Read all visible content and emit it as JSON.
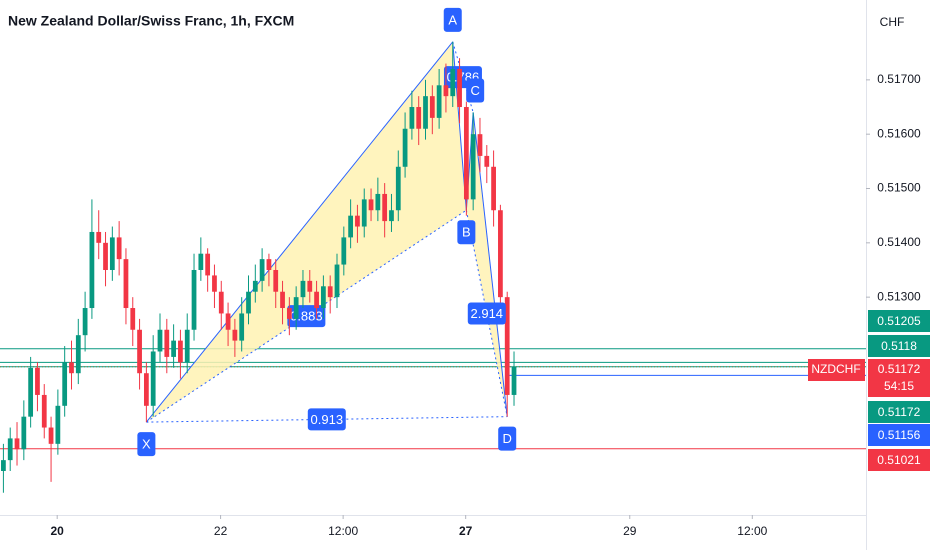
{
  "chart_data": {
    "type": "candlestick",
    "title": "New Zealand Dollar/Swiss Franc, 1h, FXCM",
    "currency": "CHF",
    "up_color": "#089981",
    "down_color": "#f23645",
    "xlim": [
      -0.5,
      126.7
    ],
    "ylim": [
      0.50899,
      0.51847
    ],
    "xticks": [
      {
        "value": 7.9,
        "label": "20"
      },
      {
        "value": 31.9,
        "label": "22"
      },
      {
        "value": 49.9,
        "label": "12:00"
      },
      {
        "value": 67.9,
        "label": "27"
      },
      {
        "value": 92,
        "label": "29"
      },
      {
        "value": 110,
        "label": "12:00"
      }
    ],
    "yticks": [
      {
        "value": 0.517,
        "label": "0.51700"
      },
      {
        "value": 0.516,
        "label": "0.51600"
      },
      {
        "value": 0.515,
        "label": "0.51500"
      },
      {
        "value": 0.514,
        "label": "0.51400"
      },
      {
        "value": 0.513,
        "label": "0.51300"
      }
    ],
    "open": [
      0.5098,
      0.51,
      0.5104,
      0.5102,
      0.5108,
      0.5117,
      0.5112,
      0.5106,
      0.5103,
      0.511,
      0.5118,
      0.5116,
      0.5123,
      0.5128,
      0.5142,
      0.514,
      0.5135,
      0.5141,
      0.5137,
      0.5128,
      0.5124,
      0.5116,
      0.511,
      0.512,
      0.5124,
      0.5119,
      0.5122,
      0.5118,
      0.5124,
      0.5135,
      0.5138,
      0.5134,
      0.5131,
      0.5127,
      0.5124,
      0.5122,
      0.5127,
      0.5131,
      0.5133,
      0.5137,
      0.5135,
      0.5131,
      0.5128,
      0.5126,
      0.513,
      0.5133,
      0.5131,
      0.5128,
      0.5132,
      0.513,
      0.5136,
      0.5141,
      0.5145,
      0.5143,
      0.5148,
      0.5146,
      0.5149,
      0.5144,
      0.5146,
      0.5154,
      0.5161,
      0.5165,
      0.5161,
      0.5167,
      0.5163,
      0.5169,
      0.5167,
      0.5172,
      0.5165,
      0.5148,
      0.516,
      0.5156,
      0.5154,
      0.5146,
      0.513,
      0.5112
    ],
    "high": [
      0.5103,
      0.5106,
      0.5107,
      0.5111,
      0.5119,
      0.5118,
      0.5114,
      0.5108,
      0.5113,
      0.5121,
      0.5122,
      0.5126,
      0.5131,
      0.5148,
      0.5146,
      0.5142,
      0.5143,
      0.5144,
      0.5139,
      0.513,
      0.5126,
      0.5118,
      0.5123,
      0.5127,
      0.5126,
      0.5125,
      0.5124,
      0.5127,
      0.5138,
      0.5141,
      0.5139,
      0.5136,
      0.5133,
      0.5129,
      0.5126,
      0.513,
      0.5134,
      0.5136,
      0.5139,
      0.5138,
      0.5137,
      0.5133,
      0.513,
      0.5132,
      0.5135,
      0.5135,
      0.5133,
      0.5134,
      0.5134,
      0.5138,
      0.5143,
      0.5148,
      0.5147,
      0.515,
      0.515,
      0.5152,
      0.5151,
      0.5149,
      0.5157,
      0.5164,
      0.5168,
      0.5167,
      0.517,
      0.5169,
      0.5172,
      0.5173,
      0.5177,
      0.5174,
      0.5166,
      0.5164,
      0.5163,
      0.5158,
      0.5157,
      0.5147,
      0.5131,
      0.512
    ],
    "low": [
      0.5094,
      0.5098,
      0.5099,
      0.51,
      0.5106,
      0.5109,
      0.5104,
      0.5096,
      0.5101,
      0.5108,
      0.5113,
      0.5114,
      0.512,
      0.5126,
      0.5137,
      0.5132,
      0.5133,
      0.5134,
      0.5125,
      0.5121,
      0.5113,
      0.5107,
      0.5108,
      0.5118,
      0.5116,
      0.5117,
      0.5115,
      0.5116,
      0.5122,
      0.5133,
      0.5131,
      0.5128,
      0.5124,
      0.5121,
      0.5119,
      0.512,
      0.5125,
      0.5129,
      0.5131,
      0.5132,
      0.5128,
      0.5125,
      0.5123,
      0.5124,
      0.5128,
      0.5129,
      0.5126,
      0.5126,
      0.5127,
      0.5128,
      0.5134,
      0.5139,
      0.514,
      0.5141,
      0.5144,
      0.5144,
      0.5141,
      0.5142,
      0.5144,
      0.5152,
      0.5159,
      0.5158,
      0.5159,
      0.516,
      0.5161,
      0.5164,
      0.5165,
      0.5162,
      0.5145,
      0.5146,
      0.5153,
      0.5151,
      0.5143,
      0.5127,
      0.5108,
      0.511
    ],
    "close": [
      0.51,
      0.5104,
      0.5102,
      0.5108,
      0.5117,
      0.5112,
      0.5106,
      0.5103,
      0.511,
      0.5118,
      0.5116,
      0.5123,
      0.5128,
      0.5142,
      0.514,
      0.5135,
      0.5141,
      0.5137,
      0.5128,
      0.5124,
      0.5116,
      0.511,
      0.512,
      0.5124,
      0.5119,
      0.5122,
      0.5118,
      0.5124,
      0.5135,
      0.5138,
      0.5134,
      0.5131,
      0.5127,
      0.5124,
      0.5122,
      0.5127,
      0.5131,
      0.5133,
      0.5137,
      0.5135,
      0.5131,
      0.5128,
      0.5126,
      0.513,
      0.5133,
      0.5131,
      0.5128,
      0.5132,
      0.513,
      0.5136,
      0.5141,
      0.5145,
      0.5143,
      0.5148,
      0.5146,
      0.5149,
      0.5144,
      0.5146,
      0.5154,
      0.5161,
      0.5165,
      0.5161,
      0.5167,
      0.5163,
      0.5169,
      0.5167,
      0.5172,
      0.5165,
      0.5148,
      0.516,
      0.5156,
      0.5154,
      0.5146,
      0.513,
      0.5112,
      0.51172
    ],
    "pattern": {
      "color": "#2962ff",
      "fill": "#fff2b3",
      "points": [
        {
          "label": "X",
          "x": 21,
          "price": 0.5107
        },
        {
          "label": "A",
          "x": 66,
          "price": 0.5177
        },
        {
          "label": "B",
          "x": 68,
          "price": 0.5146
        },
        {
          "label": "C",
          "x": 69,
          "price": 0.5164
        },
        {
          "label": "D",
          "x": 74,
          "price": 0.5108
        }
      ],
      "ratios": [
        "0.883",
        "0.786",
        "2.914",
        "0.913"
      ]
    },
    "price_lines": [
      {
        "value": 0.51205,
        "color": "#089981"
      },
      {
        "value": 0.5118,
        "color": "#089981"
      },
      {
        "value": 0.51172,
        "color": "#089981"
      },
      {
        "value": 0.51156,
        "color": "#2962ff"
      },
      {
        "value": 0.51021,
        "color": "#f23645"
      }
    ],
    "last_price": {
      "symbol": "NZDCHF",
      "value": 0.51172,
      "countdown": "54:15",
      "color": "#f23645"
    }
  }
}
